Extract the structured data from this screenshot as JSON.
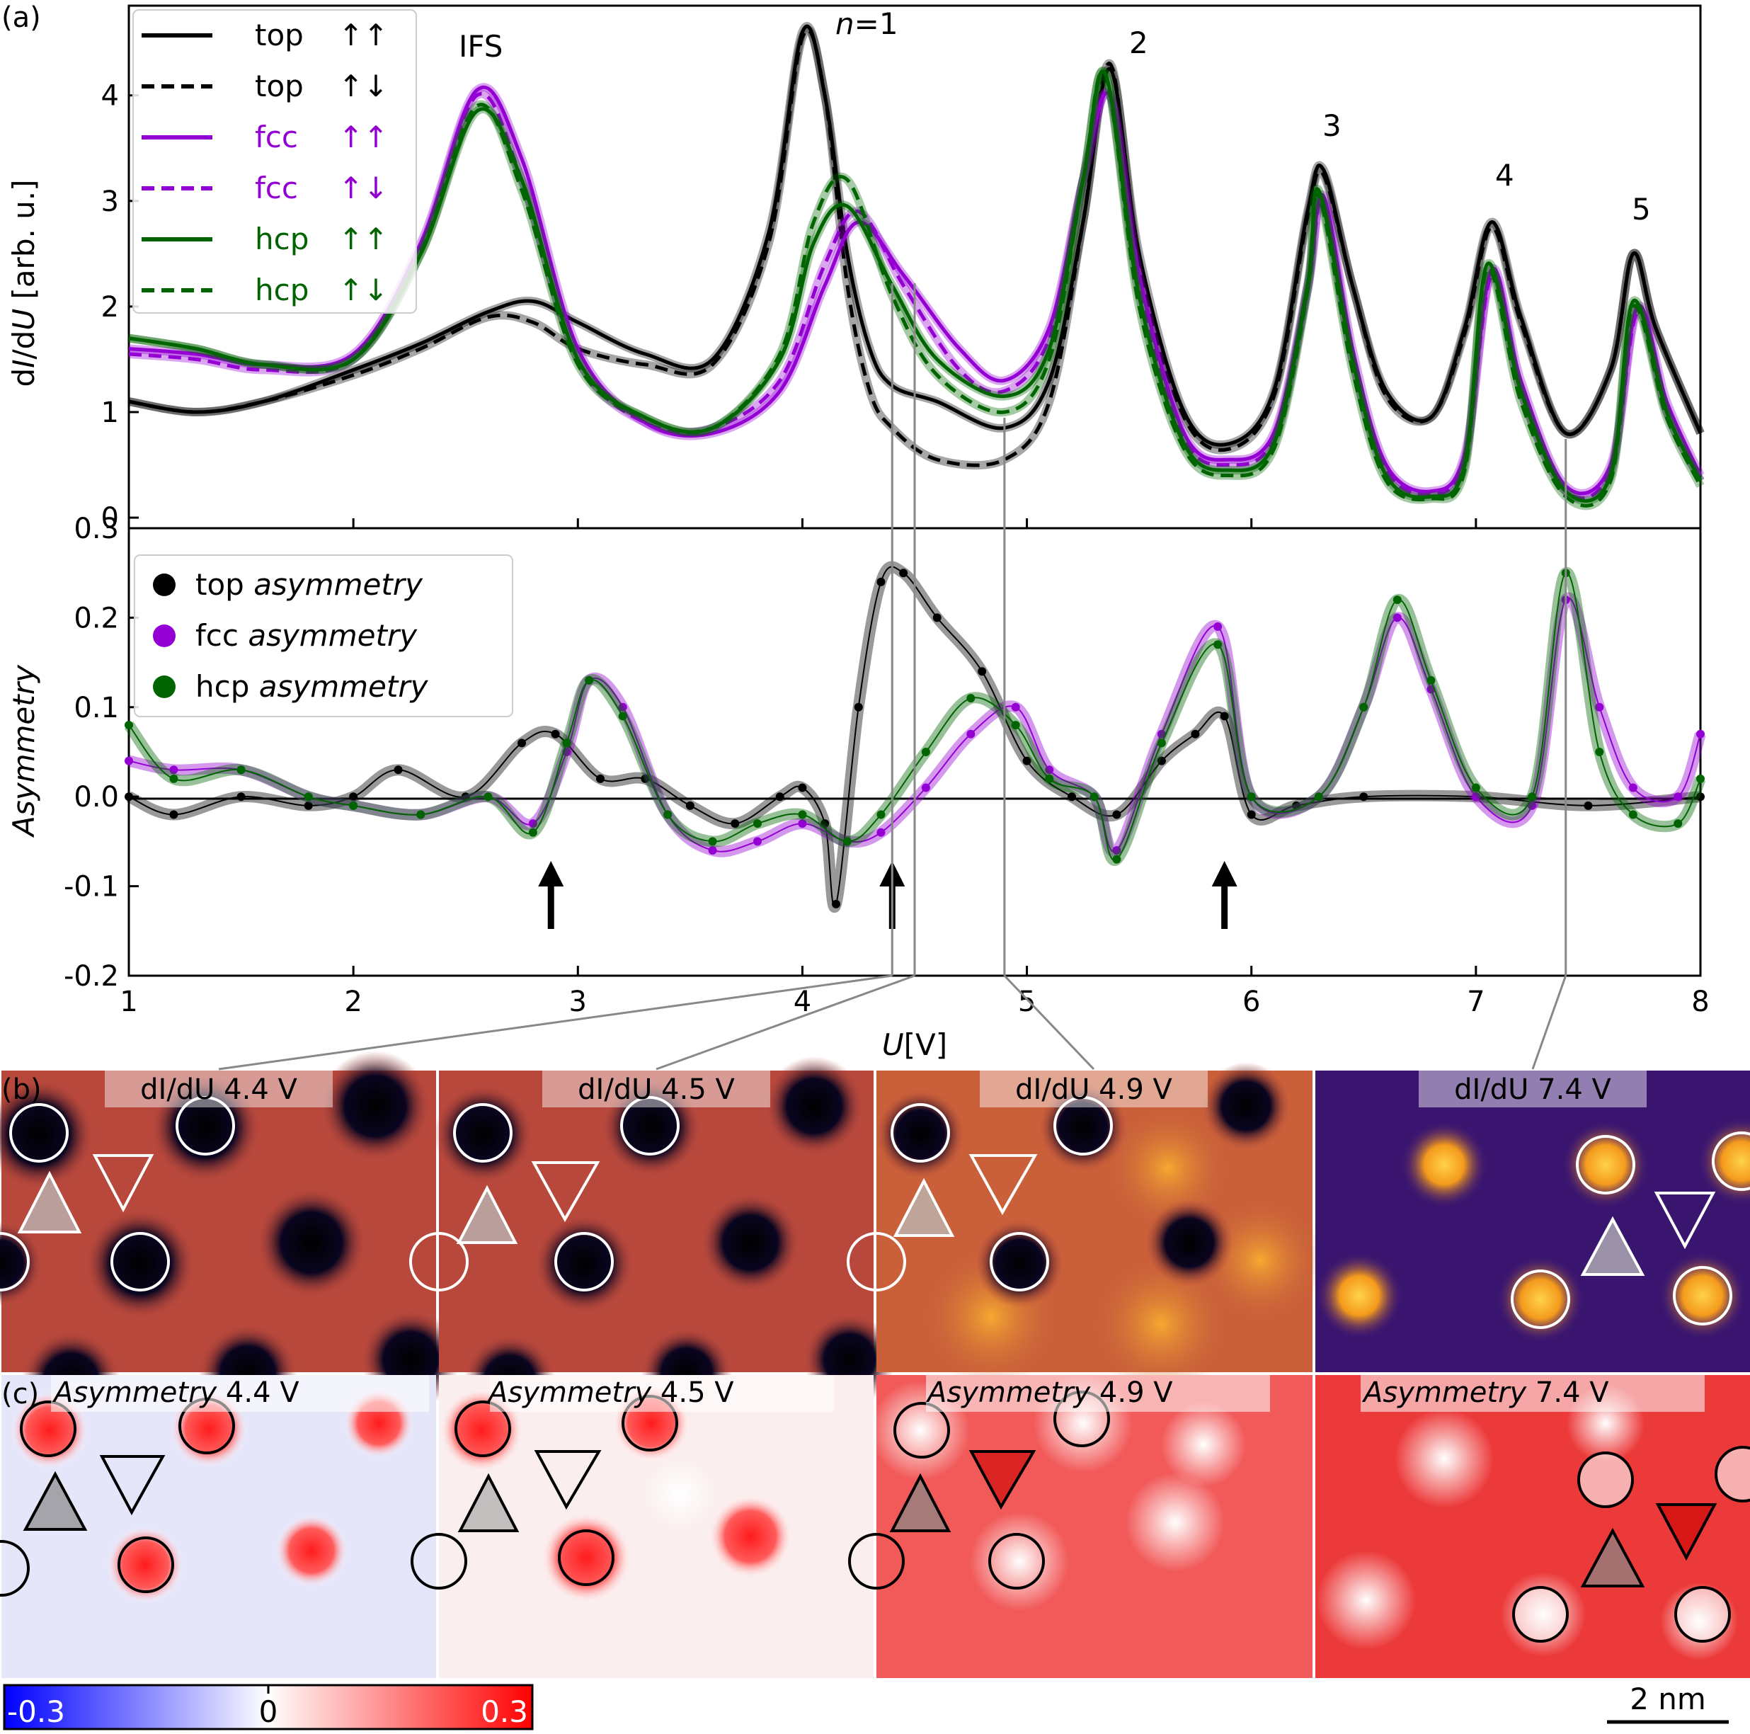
{
  "panel_labels": {
    "a": "(a)",
    "b": "(b)",
    "c": "(c)"
  },
  "colors": {
    "top": "#000000",
    "fcc": "#9400d3",
    "hcp": "#006400"
  },
  "chart_data": [
    {
      "type": "line",
      "panel": "(a)",
      "xlabel": "U[V]",
      "ylabel": "dI/dU [arb. u.]",
      "xlim": [
        1,
        8
      ],
      "ylim": [
        -0.1,
        4.85
      ],
      "xticks": [
        1,
        2,
        3,
        4,
        5,
        6,
        7,
        8
      ],
      "yticks": [
        0,
        1,
        2,
        3,
        4
      ],
      "legend": {
        "placement": "top-left",
        "entries": [
          {
            "label": "top",
            "spin": "↑↑",
            "color": "#000000",
            "dash": false
          },
          {
            "label": "top",
            "spin": "↑↓",
            "color": "#000000",
            "dash": true
          },
          {
            "label": "fcc",
            "spin": "↑↑",
            "color": "#9400d3",
            "dash": false
          },
          {
            "label": "fcc",
            "spin": "↑↓",
            "color": "#9400d3",
            "dash": true
          },
          {
            "label": "hcp",
            "spin": "↑↑",
            "color": "#006400",
            "dash": false
          },
          {
            "label": "hcp",
            "spin": "↑↓",
            "color": "#006400",
            "dash": true
          }
        ]
      },
      "annotations": [
        {
          "text": "IFS",
          "x": 2.62,
          "y": 4.45
        },
        {
          "text": "n=1",
          "x": 4.38,
          "y": 4.72
        },
        {
          "text": "2",
          "x": 5.5,
          "y": 4.45
        },
        {
          "text": "3",
          "x": 6.35,
          "y": 3.6
        },
        {
          "text": "4",
          "x": 7.12,
          "y": 3.15
        },
        {
          "text": "5",
          "x": 7.72,
          "y": 2.85
        }
      ],
      "series": [
        {
          "label": "top",
          "spin": "↑↑",
          "color": "#000000",
          "dash": false,
          "x": [
            1.0,
            1.3,
            1.6,
            2.0,
            2.3,
            2.6,
            2.8,
            3.0,
            3.3,
            3.6,
            3.85,
            4.0,
            4.1,
            4.2,
            4.3,
            4.4,
            4.6,
            4.9,
            5.1,
            5.25,
            5.37,
            5.5,
            5.7,
            5.9,
            6.1,
            6.25,
            6.32,
            6.45,
            6.6,
            6.8,
            6.95,
            7.07,
            7.2,
            7.4,
            7.6,
            7.7,
            7.8,
            8.0
          ],
          "y": [
            1.1,
            1.0,
            1.1,
            1.4,
            1.65,
            1.95,
            2.05,
            1.85,
            1.55,
            1.5,
            2.7,
            4.6,
            4.0,
            2.5,
            1.6,
            1.25,
            1.1,
            0.85,
            1.3,
            2.8,
            4.25,
            2.5,
            1.0,
            0.7,
            1.2,
            2.9,
            3.3,
            2.2,
            1.2,
            0.95,
            1.8,
            2.8,
            1.9,
            0.8,
            1.4,
            2.5,
            1.8,
            0.8
          ]
        },
        {
          "label": "top",
          "spin": "↑↓",
          "color": "#000000",
          "dash": true,
          "x": [
            1.0,
            1.3,
            1.6,
            2.0,
            2.3,
            2.6,
            2.8,
            3.0,
            3.3,
            3.6,
            3.85,
            4.0,
            4.1,
            4.2,
            4.3,
            4.4,
            4.6,
            4.9,
            5.1,
            5.25,
            5.37,
            5.5,
            5.7,
            5.9,
            6.1,
            6.25,
            6.32,
            6.45,
            6.6,
            6.8,
            6.95,
            7.07,
            7.2,
            7.4,
            7.6,
            7.7,
            7.8,
            8.0
          ],
          "y": [
            1.1,
            1.0,
            1.1,
            1.35,
            1.6,
            1.9,
            1.85,
            1.6,
            1.45,
            1.45,
            2.6,
            4.55,
            4.0,
            2.2,
            1.2,
            0.85,
            0.55,
            0.55,
            1.1,
            2.8,
            4.3,
            2.4,
            0.95,
            0.65,
            1.15,
            2.85,
            3.25,
            2.2,
            1.15,
            0.95,
            1.75,
            2.75,
            1.85,
            0.8,
            1.4,
            2.5,
            1.8,
            0.8
          ]
        },
        {
          "label": "fcc",
          "spin": "↑↑",
          "color": "#9400d3",
          "dash": false,
          "x": [
            1.0,
            1.3,
            1.6,
            2.0,
            2.3,
            2.55,
            2.75,
            3.0,
            3.3,
            3.6,
            3.9,
            4.1,
            4.25,
            4.45,
            4.7,
            4.9,
            5.1,
            5.25,
            5.37,
            5.5,
            5.7,
            5.9,
            6.1,
            6.25,
            6.32,
            6.45,
            6.6,
            6.8,
            6.95,
            7.07,
            7.2,
            7.4,
            7.6,
            7.72,
            7.85,
            8.0
          ],
          "y": [
            1.6,
            1.55,
            1.45,
            1.55,
            2.6,
            4.05,
            3.4,
            1.6,
            0.9,
            0.8,
            1.2,
            2.2,
            2.8,
            2.3,
            1.6,
            1.3,
            1.8,
            3.2,
            4.0,
            2.3,
            0.8,
            0.55,
            0.8,
            2.2,
            3.05,
            1.6,
            0.5,
            0.25,
            0.6,
            2.35,
            1.3,
            0.3,
            0.5,
            2.0,
            1.1,
            0.4
          ]
        },
        {
          "label": "fcc",
          "spin": "↑↓",
          "color": "#9400d3",
          "dash": true,
          "x": [
            1.0,
            1.3,
            1.6,
            2.0,
            2.3,
            2.55,
            2.75,
            3.0,
            3.3,
            3.6,
            3.9,
            4.1,
            4.25,
            4.45,
            4.7,
            4.9,
            5.1,
            5.25,
            5.37,
            5.5,
            5.7,
            5.9,
            6.1,
            6.25,
            6.32,
            6.45,
            6.6,
            6.8,
            6.95,
            7.07,
            7.2,
            7.4,
            7.6,
            7.72,
            7.85,
            8.0
          ],
          "y": [
            1.55,
            1.5,
            1.4,
            1.5,
            2.55,
            4.0,
            3.2,
            1.5,
            0.9,
            0.85,
            1.3,
            2.4,
            2.9,
            2.2,
            1.4,
            1.2,
            1.7,
            3.2,
            4.0,
            2.2,
            0.75,
            0.5,
            0.75,
            2.15,
            3.0,
            1.5,
            0.45,
            0.22,
            0.55,
            2.3,
            1.2,
            0.25,
            0.45,
            1.95,
            1.0,
            0.35
          ]
        },
        {
          "label": "hcp",
          "spin": "↑↑",
          "color": "#006400",
          "dash": false,
          "x": [
            1.0,
            1.3,
            1.6,
            2.0,
            2.3,
            2.55,
            2.75,
            3.0,
            3.3,
            3.6,
            3.9,
            4.05,
            4.2,
            4.4,
            4.6,
            4.9,
            5.1,
            5.25,
            5.35,
            5.5,
            5.7,
            5.9,
            6.1,
            6.25,
            6.3,
            6.45,
            6.6,
            6.8,
            6.95,
            7.05,
            7.2,
            7.4,
            7.6,
            7.7,
            7.85,
            8.0
          ],
          "y": [
            1.7,
            1.6,
            1.45,
            1.5,
            2.5,
            3.85,
            3.2,
            1.5,
            0.95,
            0.85,
            1.5,
            2.6,
            2.95,
            2.2,
            1.5,
            1.15,
            1.6,
            3.2,
            4.2,
            2.1,
            0.7,
            0.45,
            0.7,
            2.2,
            3.1,
            1.5,
            0.4,
            0.2,
            0.5,
            2.4,
            1.2,
            0.25,
            0.4,
            2.05,
            1.0,
            0.35
          ]
        },
        {
          "label": "hcp",
          "spin": "↑↓",
          "color": "#006400",
          "dash": true,
          "x": [
            1.0,
            1.3,
            1.6,
            2.0,
            2.3,
            2.55,
            2.75,
            3.0,
            3.3,
            3.6,
            3.9,
            4.05,
            4.2,
            4.4,
            4.6,
            4.9,
            5.1,
            5.25,
            5.35,
            5.5,
            5.7,
            5.9,
            6.1,
            6.25,
            6.3,
            6.45,
            6.6,
            6.8,
            6.95,
            7.05,
            7.2,
            7.4,
            7.6,
            7.7,
            7.85,
            8.0
          ],
          "y": [
            1.7,
            1.6,
            1.45,
            1.5,
            2.5,
            3.9,
            3.1,
            1.45,
            0.95,
            0.85,
            1.55,
            2.8,
            3.2,
            2.1,
            1.35,
            1.0,
            1.5,
            3.2,
            4.2,
            2.0,
            0.65,
            0.4,
            0.65,
            2.15,
            3.05,
            1.4,
            0.35,
            0.18,
            0.45,
            2.35,
            1.1,
            0.2,
            0.35,
            2.0,
            0.95,
            0.3
          ]
        }
      ]
    },
    {
      "type": "scatter",
      "panel": "(a)",
      "xlabel": "U[V]",
      "ylabel": "Asymmetry",
      "xlim": [
        1,
        8
      ],
      "ylim": [
        -0.2,
        0.3
      ],
      "xticks": [
        1,
        2,
        3,
        4,
        5,
        6,
        7,
        8
      ],
      "yticks": [
        -0.2,
        -0.1,
        0.0,
        0.1,
        0.2,
        0.3
      ],
      "ytick_labels": [
        "-0.2",
        "-0.1",
        "0.0",
        "0.1",
        "0.2",
        "0.3"
      ],
      "grid": false,
      "legend": {
        "placement": "top-left",
        "entries": [
          {
            "prefix": "top",
            "suffix": "asymmetry",
            "color": "#000000"
          },
          {
            "prefix": "fcc",
            "suffix": "asymmetry",
            "color": "#9400d3"
          },
          {
            "prefix": "hcp",
            "suffix": "asymmetry",
            "color": "#006400"
          }
        ]
      },
      "arrows_at_x": [
        2.88,
        4.4,
        5.88
      ],
      "guide_lines_at_x": [
        4.4,
        4.5,
        4.9,
        7.4
      ],
      "series": [
        {
          "label": "top asymmetry",
          "color": "#000000",
          "x": [
            1.0,
            1.2,
            1.5,
            1.8,
            2.0,
            2.2,
            2.5,
            2.75,
            2.9,
            3.1,
            3.3,
            3.5,
            3.7,
            3.9,
            4.0,
            4.1,
            4.15,
            4.25,
            4.35,
            4.45,
            4.6,
            4.8,
            5.0,
            5.2,
            5.4,
            5.6,
            5.75,
            5.88,
            6.0,
            6.2,
            6.5,
            7.0,
            7.5,
            8.0
          ],
          "y": [
            0.0,
            -0.02,
            0.0,
            -0.01,
            0.0,
            0.03,
            0.0,
            0.06,
            0.07,
            0.02,
            0.02,
            -0.01,
            -0.03,
            0.0,
            0.01,
            -0.03,
            -0.12,
            0.1,
            0.24,
            0.25,
            0.2,
            0.14,
            0.04,
            0.0,
            -0.02,
            0.04,
            0.07,
            0.09,
            -0.02,
            -0.01,
            0.0,
            0.0,
            -0.01,
            0.0
          ]
        },
        {
          "label": "fcc asymmetry",
          "color": "#9400d3",
          "x": [
            1.0,
            1.2,
            1.5,
            1.8,
            2.0,
            2.3,
            2.6,
            2.8,
            2.95,
            3.05,
            3.2,
            3.4,
            3.6,
            3.8,
            4.0,
            4.2,
            4.35,
            4.55,
            4.75,
            4.95,
            5.1,
            5.3,
            5.4,
            5.6,
            5.85,
            6.0,
            6.3,
            6.5,
            6.65,
            6.8,
            7.0,
            7.25,
            7.4,
            7.55,
            7.7,
            7.9,
            8.0
          ],
          "y": [
            0.04,
            0.03,
            0.03,
            0.0,
            -0.01,
            -0.02,
            0.0,
            -0.03,
            0.05,
            0.13,
            0.1,
            -0.02,
            -0.06,
            -0.05,
            -0.03,
            -0.05,
            -0.04,
            0.01,
            0.07,
            0.1,
            0.03,
            0.0,
            -0.06,
            0.07,
            0.19,
            0.0,
            0.0,
            0.1,
            0.2,
            0.12,
            0.0,
            -0.01,
            0.22,
            0.1,
            0.01,
            0.0,
            0.07
          ]
        },
        {
          "label": "hcp asymmetry",
          "color": "#006400",
          "x": [
            1.0,
            1.2,
            1.5,
            1.8,
            2.0,
            2.3,
            2.6,
            2.8,
            2.95,
            3.05,
            3.2,
            3.4,
            3.6,
            3.8,
            4.0,
            4.2,
            4.35,
            4.55,
            4.75,
            4.95,
            5.1,
            5.3,
            5.4,
            5.6,
            5.85,
            6.0,
            6.3,
            6.5,
            6.65,
            6.8,
            7.0,
            7.25,
            7.4,
            7.55,
            7.7,
            7.9,
            8.0
          ],
          "y": [
            0.08,
            0.02,
            0.03,
            0.0,
            -0.01,
            -0.02,
            0.0,
            -0.04,
            0.06,
            0.13,
            0.09,
            -0.02,
            -0.05,
            -0.03,
            -0.02,
            -0.05,
            -0.02,
            0.05,
            0.11,
            0.08,
            0.02,
            0.0,
            -0.07,
            0.06,
            0.17,
            0.0,
            0.0,
            0.1,
            0.22,
            0.13,
            0.01,
            0.0,
            0.25,
            0.05,
            -0.02,
            -0.03,
            0.02
          ]
        }
      ]
    }
  ],
  "panel_b": {
    "titles": [
      "dI/dU 4.4 V",
      "dI/dU 4.5 V",
      "dI/dU 4.9 V",
      "dI/dU 7.4 V"
    ]
  },
  "panel_c": {
    "titles": [
      "Asymmetry 4.4 V",
      "Asymmetry 4.5 V",
      "Asymmetry 4.9 V",
      "Asymmetry 7.4 V"
    ]
  },
  "colorbar": {
    "min_label": "-0.3",
    "mid_label": "0",
    "max_label": "0.3"
  },
  "scalebar": {
    "label": "2 nm"
  }
}
